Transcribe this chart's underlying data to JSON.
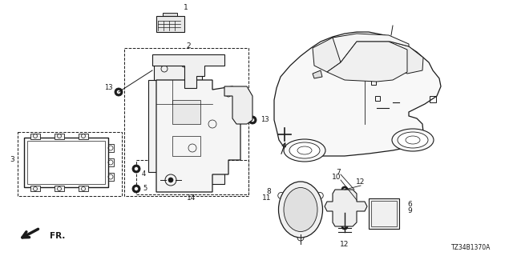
{
  "bg_color": "#ffffff",
  "line_color": "#1a1a1a",
  "diagram_code": "TZ34B1370A",
  "fig_width": 6.4,
  "fig_height": 3.2,
  "dpi": 100
}
